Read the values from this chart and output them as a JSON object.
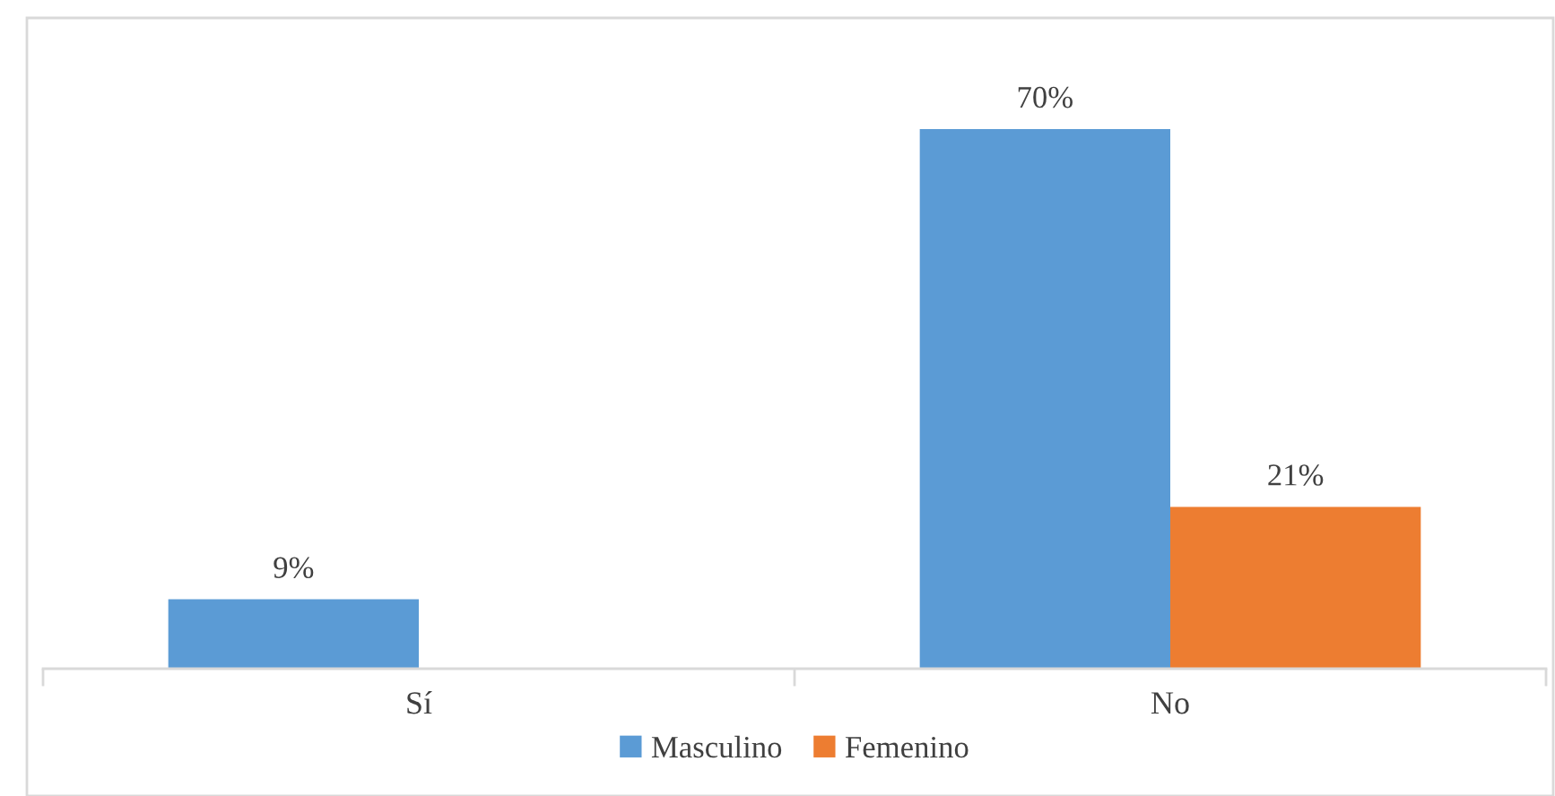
{
  "chart_data": {
    "type": "bar",
    "categories": [
      "Sí",
      "No"
    ],
    "series": [
      {
        "name": "Masculino",
        "color": "#5b9bd5",
        "values": [
          9,
          70
        ],
        "value_labels": [
          "9%",
          "70%"
        ]
      },
      {
        "name": "Femenino",
        "color": "#ed7d31",
        "values": [
          null,
          21
        ],
        "value_labels": [
          null,
          "21%"
        ]
      }
    ],
    "legend": "bottom"
  }
}
